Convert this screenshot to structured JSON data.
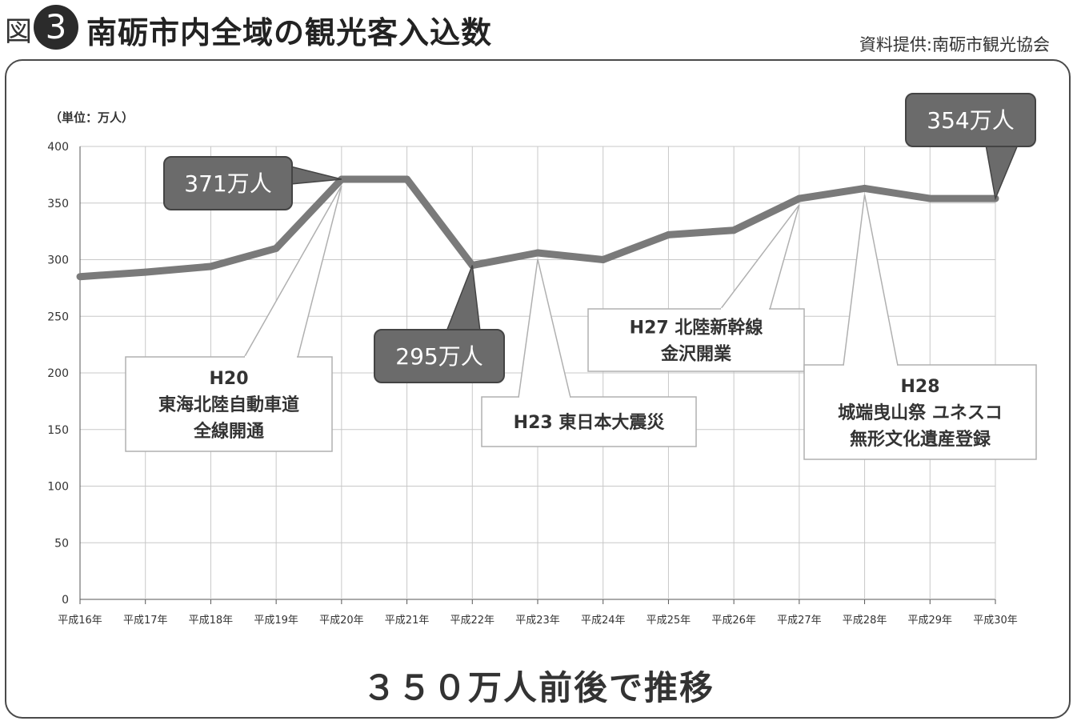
{
  "header": {
    "figure_label": "図",
    "figure_number": "3",
    "title": "南砺市内全域の観光客入込数",
    "source": "資料提供:南砺市観光協会"
  },
  "chart_data": {
    "type": "line",
    "unit_label": "（単位：万人）",
    "categories": [
      "平成16年",
      "平成17年",
      "平成18年",
      "平成19年",
      "平成20年",
      "平成21年",
      "平成22年",
      "平成23年",
      "平成24年",
      "平成25年",
      "平成26年",
      "平成27年",
      "平成28年",
      "平成29年",
      "平成30年"
    ],
    "values": [
      285,
      289,
      294,
      310,
      371,
      371,
      295,
      306,
      300,
      322,
      326,
      354,
      363,
      354,
      354
    ],
    "ylim": [
      0,
      400
    ],
    "yticks": [
      0,
      50,
      100,
      150,
      200,
      250,
      300,
      350,
      400
    ],
    "grid": true,
    "line_color": "#7a7a7a",
    "callouts": [
      {
        "text": "371万人",
        "index": 4
      },
      {
        "text": "295万人",
        "index": 6
      },
      {
        "text": "354万人",
        "index": 14
      }
    ],
    "annotations": [
      {
        "lines": [
          "H20",
          "東海北陸自動車道",
          "全線開通"
        ],
        "index": 4
      },
      {
        "lines": [
          "H23 東日本大震災"
        ],
        "index": 7
      },
      {
        "lines": [
          "H27 北陸新幹線",
          "金沢開業"
        ],
        "index": 11
      },
      {
        "lines": [
          "H28",
          "城端曳山祭 ユネスコ",
          "無形文化遺産登録"
        ],
        "index": 12
      }
    ]
  },
  "footer": {
    "text": "３５０万人前後で推移"
  }
}
